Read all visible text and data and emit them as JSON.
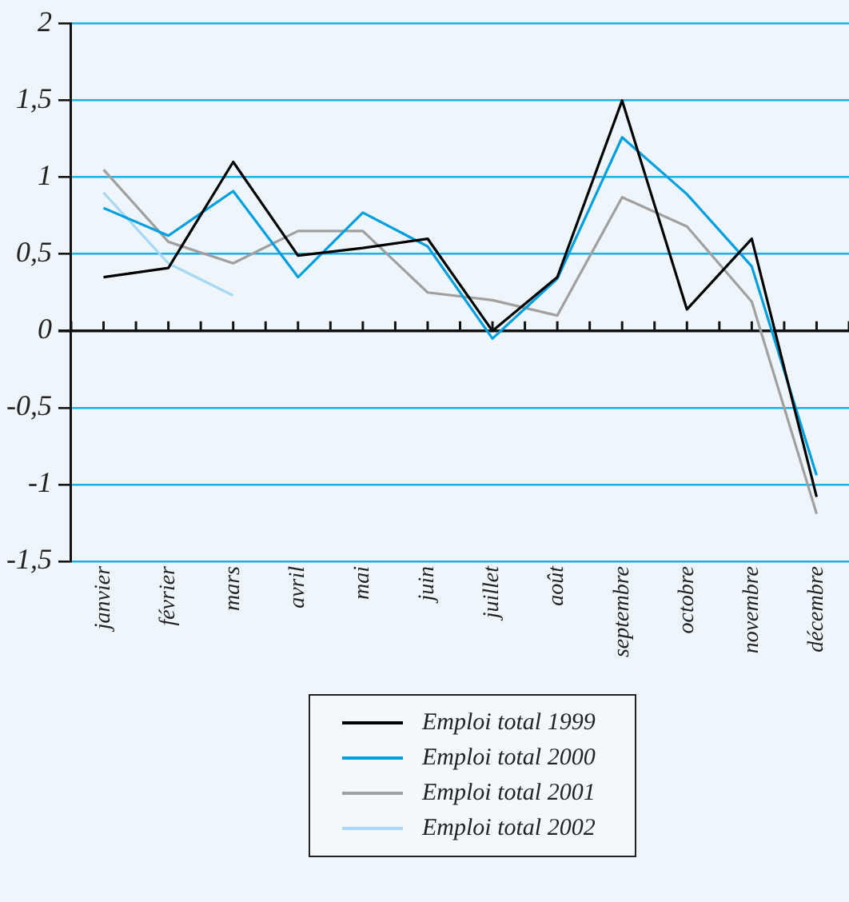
{
  "chart_data": {
    "type": "line",
    "categories": [
      "janvier",
      "février",
      "mars",
      "avril",
      "mai",
      "juin",
      "juillet",
      "août",
      "septembre",
      "octobre",
      "novembre",
      "décembre"
    ],
    "series": [
      {
        "name": "Emploi total 1999",
        "color": "#000000",
        "values": [
          0.35,
          0.41,
          1.1,
          0.49,
          0.54,
          0.6,
          0.0,
          0.35,
          1.5,
          0.14,
          0.6,
          -1.08
        ]
      },
      {
        "name": "Emploi total 2000",
        "color": "#00a0e0",
        "values": [
          0.8,
          0.62,
          0.91,
          0.35,
          0.77,
          0.55,
          -0.05,
          0.34,
          1.26,
          0.89,
          0.42,
          -0.94
        ]
      },
      {
        "name": "Emploi total 2001",
        "color": "#a0a0a0",
        "values": [
          1.05,
          0.58,
          0.44,
          0.65,
          0.65,
          0.25,
          0.2,
          0.1,
          0.87,
          0.68,
          0.19,
          -1.19
        ]
      },
      {
        "name": "Emploi total 2002",
        "color": "#a8d8f4",
        "values": [
          0.9,
          0.44,
          0.23,
          null,
          null,
          null,
          null,
          null,
          null,
          null,
          null,
          null
        ]
      }
    ],
    "ylim": [
      -1.5,
      2
    ],
    "yticks": [
      {
        "value": -1.5,
        "label": "-1,5"
      },
      {
        "value": -1,
        "label": "-1"
      },
      {
        "value": -0.5,
        "label": "-0,5"
      },
      {
        "value": 0,
        "label": "0"
      },
      {
        "value": 0.5,
        "label": "0,5"
      },
      {
        "value": 1,
        "label": "1"
      },
      {
        "value": 1.5,
        "label": "1,5"
      },
      {
        "value": 2,
        "label": "2"
      }
    ],
    "grid": "y",
    "legend": "bottom",
    "marker": "none",
    "line_style": "solid"
  }
}
